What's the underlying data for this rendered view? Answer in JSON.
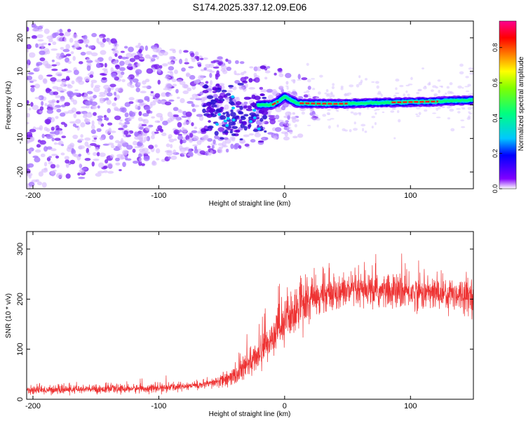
{
  "title": "S174.2025.337.12.09.E06",
  "chart_data": [
    {
      "type": "heatmap",
      "name": "spectrogram",
      "xlabel": "Height of straight line (km)",
      "ylabel": "Frequency (Hz)",
      "xlim": [
        -205,
        150
      ],
      "ylim": [
        -25,
        25
      ],
      "xticks": [
        -200,
        -100,
        0,
        100
      ],
      "yticks": [
        -20,
        -10,
        0,
        10,
        20
      ],
      "xtick_labels": [
        "-200",
        "-100",
        "0",
        "100"
      ],
      "ytick_labels": [
        "-20",
        "-10",
        "0",
        "10",
        "20"
      ],
      "signal_ridge": {
        "x": [
          -20,
          -10,
          -5,
          0,
          10,
          40,
          80,
          120,
          150
        ],
        "y": [
          0,
          0,
          1,
          2.5,
          0.5,
          0.3,
          0.7,
          1.0,
          1.5
        ]
      },
      "colorbar": {
        "label": "Normalized spectral amplitude",
        "range": [
          0,
          0.95
        ],
        "ticks": [
          0,
          0.2,
          0.4,
          0.6,
          0.8
        ],
        "tick_labels": [
          "0.0",
          "0.2",
          "0.4",
          "0.6",
          "0.8"
        ],
        "colors": [
          "#ffffff",
          "#8000ff",
          "#0000ff",
          "#00c8ff",
          "#00ff80",
          "#80ff00",
          "#ffff00",
          "#ff8000",
          "#ff0000",
          "#ff0090"
        ]
      }
    },
    {
      "type": "line",
      "name": "snr",
      "xlabel": "Height of straight line (km)",
      "ylabel": "SNR (10 * v/v)",
      "xlim": [
        -205,
        150
      ],
      "ylim": [
        0,
        335
      ],
      "xticks": [
        -200,
        -100,
        0,
        100
      ],
      "yticks": [
        0,
        100,
        200,
        300
      ],
      "xtick_labels": [
        "-200",
        "-100",
        "0",
        "100"
      ],
      "ytick_labels": [
        "0",
        "100",
        "200",
        "300"
      ],
      "color": "#ee3333",
      "trend": {
        "x": [
          -205,
          -150,
          -100,
          -60,
          -40,
          -20,
          0,
          20,
          40,
          80,
          120,
          150
        ],
        "y": [
          18,
          20,
          22,
          30,
          45,
          90,
          155,
          200,
          215,
          215,
          212,
          210
        ]
      }
    }
  ]
}
